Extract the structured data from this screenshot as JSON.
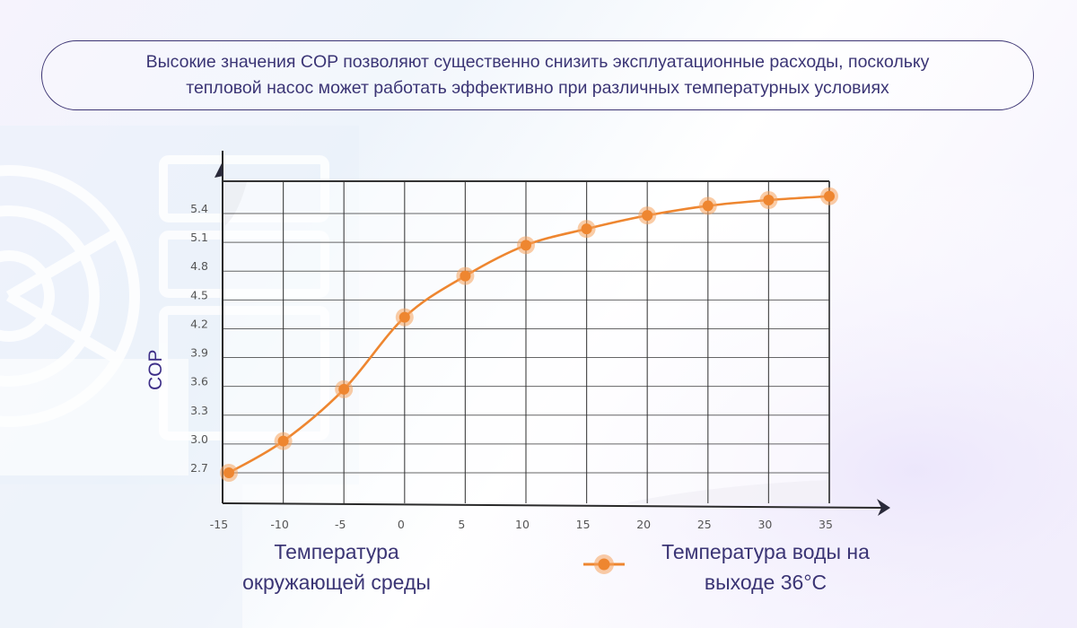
{
  "callout": {
    "line1": "Высокие значения COP позволяют существенно снизить эксплуатационные расходы, поскольку",
    "line2": "тепловой насос может работать эффективно при различных температурных условиях"
  },
  "axes": {
    "ylabel": "COP",
    "xlabel_line1": "Температура",
    "xlabel_line2": "окружающей среды"
  },
  "legend": {
    "line1": "Температура воды на",
    "line2": "выходе 36°C"
  },
  "colors": {
    "series": "#ee8630",
    "text": "#3b3575",
    "grid": "#333333"
  },
  "chart_data": {
    "type": "line",
    "title": "",
    "xlabel": "Температура окружающей среды",
    "ylabel": "COP",
    "x": [
      -15,
      -10,
      -5,
      0,
      5,
      10,
      15,
      20,
      25,
      30,
      35
    ],
    "x_ticks": [
      "-15",
      "-10",
      "-5",
      "0",
      "5",
      "10",
      "15",
      "20",
      "25",
      "30",
      "35"
    ],
    "y_ticks": [
      "2.7",
      "3.0",
      "3.3",
      "3.6",
      "3.9",
      "4.2",
      "4.5",
      "4.8",
      "5.1",
      "5.4"
    ],
    "ylim": [
      2.4,
      5.7
    ],
    "xlim": [
      -15,
      35
    ],
    "grid": true,
    "legend_position": "bottom-right",
    "series": [
      {
        "name": "Температура воды на выходе 36°C",
        "values": [
          2.7,
          3.03,
          3.57,
          4.32,
          4.75,
          5.07,
          5.24,
          5.38,
          5.48,
          5.54,
          5.58
        ]
      }
    ]
  }
}
